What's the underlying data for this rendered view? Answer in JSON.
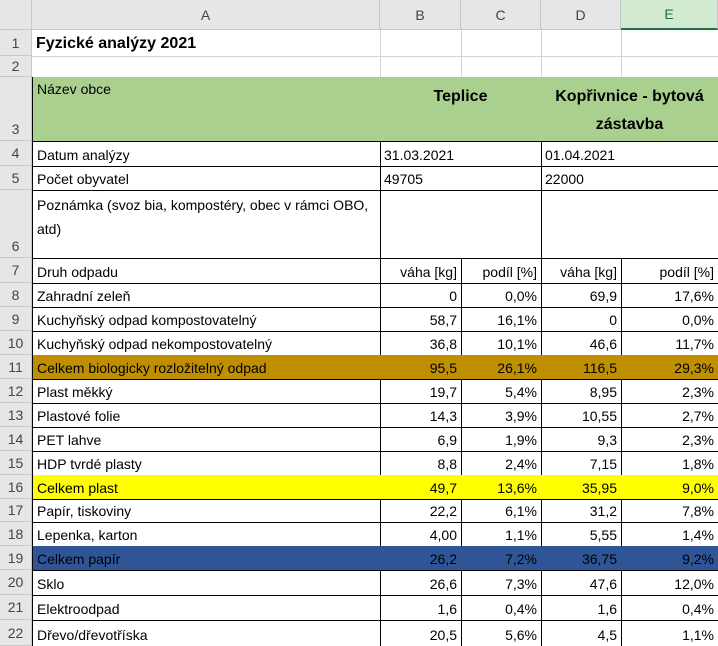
{
  "columns": [
    "A",
    "B",
    "C",
    "D",
    "E"
  ],
  "row_numbers": [
    1,
    2,
    3,
    4,
    5,
    6,
    7,
    8,
    9,
    10,
    11,
    12,
    13,
    14,
    15,
    16,
    17,
    18,
    19,
    20,
    21,
    22
  ],
  "selected_column_color": "#d2e9d2",
  "title": "Fyzické analýzy 2021",
  "header": {
    "label": "Název obce",
    "sites": [
      "Teplice",
      "Kopřivnice - bytová zástavba"
    ],
    "fill": "#a9d08e"
  },
  "info": [
    {
      "label": "Datum analýzy",
      "values": [
        "31.03.2021",
        "01.04.2021"
      ]
    },
    {
      "label": "Počet obyvatel",
      "values": [
        "49705",
        "22000"
      ]
    }
  ],
  "note": "Poznámka (svoz bia, kompostéry, obec v rámci OBO, atd)",
  "table": {
    "header": [
      "Druh odpadu",
      "váha [kg]",
      "podíl [%]",
      "váha [kg]",
      "podíl [%]"
    ],
    "rows": [
      {
        "cells": [
          "Zahradní zeleň",
          "0",
          "0,0%",
          "69,9",
          "17,6%"
        ]
      },
      {
        "cells": [
          "Kuchyňský odpad kompostovatelný",
          "58,7",
          "16,1%",
          "0",
          "0,0%"
        ]
      },
      {
        "cells": [
          "Kuchyňský odpad nekompostovatelný",
          "36,8",
          "10,1%",
          "46,6",
          "11,7%"
        ]
      },
      {
        "cells": [
          "Celkem biologicky rozložitelný odpad",
          "95,5",
          "26,1%",
          "116,5",
          "29,3%"
        ],
        "fill": "#bf8f00"
      },
      {
        "cells": [
          "Plast měkký",
          "19,7",
          "5,4%",
          "8,95",
          "2,3%"
        ]
      },
      {
        "cells": [
          "Plastové folie",
          "14,3",
          "3,9%",
          "10,55",
          "2,7%"
        ]
      },
      {
        "cells": [
          "PET lahve",
          "6,9",
          "1,9%",
          "9,3",
          "2,3%"
        ]
      },
      {
        "cells": [
          "HDP tvrdé plasty",
          "8,8",
          "2,4%",
          "7,15",
          "1,8%"
        ]
      },
      {
        "cells": [
          "Celkem plast",
          "49,7",
          "13,6%",
          "35,95",
          "9,0%"
        ],
        "fill": "#ffff00"
      },
      {
        "cells": [
          "Papír, tiskoviny",
          "22,2",
          "6,1%",
          "31,2",
          "7,8%"
        ]
      },
      {
        "cells": [
          "Lepenka, karton",
          "4,00",
          "1,1%",
          "5,55",
          "1,4%"
        ]
      },
      {
        "cells": [
          "Celkem papír",
          "26,2",
          "7,2%",
          "36,75",
          "9,2%"
        ],
        "fill": "#2f5597"
      },
      {
        "cells": [
          "Sklo",
          "26,6",
          "7,3%",
          "47,6",
          "12,0%"
        ]
      },
      {
        "cells": [
          "Elektroodpad",
          "1,6",
          "0,4%",
          "1,6",
          "0,4%"
        ]
      },
      {
        "cells": [
          "Dřevo/dřevotříska",
          "20,5",
          "5,6%",
          "4,5",
          "1,1%"
        ]
      }
    ]
  }
}
